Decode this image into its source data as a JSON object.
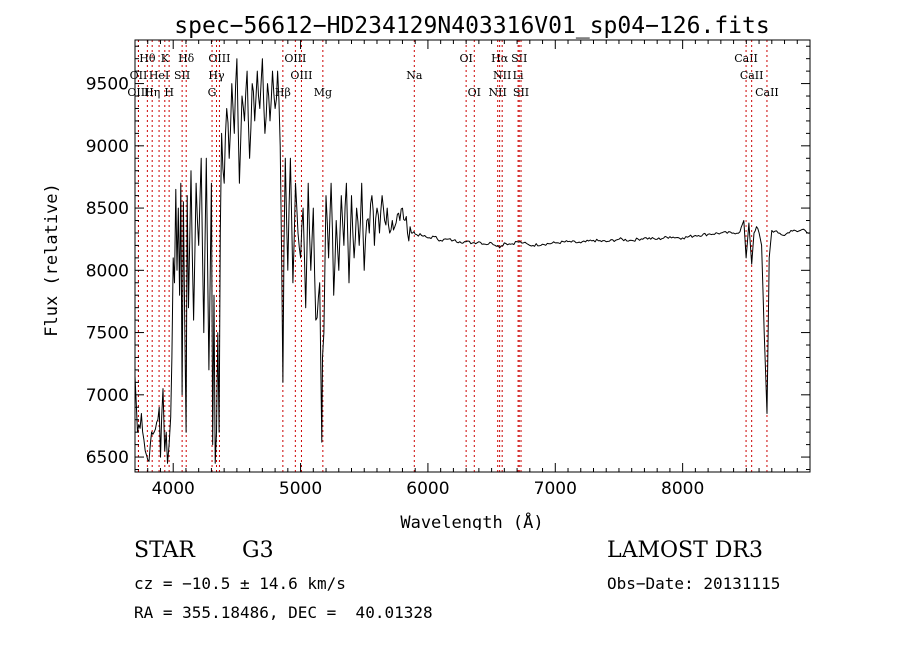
{
  "chart_data": {
    "type": "line",
    "title": "spec−56612−HD234129N403316V01_sp04−126.fits",
    "xlabel": "Wavelength (Å)",
    "ylabel": "Flux (relative)",
    "xlim": [
      3700,
      9000
    ],
    "ylim": [
      6380,
      9850
    ],
    "xticks": [
      "4000",
      "5000",
      "6000",
      "7000",
      "8000"
    ],
    "yticks": [
      "6500",
      "7000",
      "7500",
      "8000",
      "8500",
      "9000",
      "9500"
    ],
    "series": [
      {
        "x": [
          3700,
          3720,
          3750,
          3780,
          3800,
          3820,
          3850,
          3870,
          3890,
          3900,
          3920,
          3933,
          3945,
          3955,
          3968,
          3980,
          3990,
          4000,
          4010,
          4020,
          4030,
          4040,
          4050,
          4060,
          4070,
          4080,
          4090,
          4101,
          4110,
          4120,
          4140,
          4160,
          4180,
          4200,
          4220,
          4240,
          4260,
          4280,
          4300,
          4310,
          4320,
          4330,
          4340,
          4350,
          4360,
          4370,
          4380,
          4400,
          4420,
          4440,
          4460,
          4480,
          4500,
          4520,
          4540,
          4560,
          4580,
          4600,
          4620,
          4640,
          4660,
          4680,
          4700,
          4720,
          4740,
          4760,
          4780,
          4800,
          4820,
          4840,
          4850,
          4861,
          4870,
          4880,
          4900,
          4920,
          4940,
          4960,
          4980,
          5000,
          5020,
          5040,
          5060,
          5080,
          5100,
          5120,
          5150,
          5167,
          5172,
          5183,
          5200,
          5220,
          5240,
          5260,
          5280,
          5300,
          5320,
          5340,
          5360,
          5380,
          5400,
          5420,
          5440,
          5460,
          5480,
          5500,
          5520,
          5540,
          5560,
          5580,
          5600,
          5620,
          5640,
          5660,
          5680,
          5700,
          5720,
          5740,
          5760,
          5780,
          5800,
          5820,
          5840,
          5860,
          5880,
          5900,
          5950,
          6000,
          6050,
          6100,
          6150,
          6200,
          6250,
          6300,
          6350,
          6400,
          6450,
          6500,
          6550,
          6563,
          6600,
          6650,
          6700,
          6750,
          6800,
          6900,
          7000,
          7100,
          7200,
          7300,
          7400,
          7500,
          7600,
          7700,
          7800,
          7900,
          8000,
          8100,
          8200,
          8300,
          8400,
          8450,
          8480,
          8498,
          8520,
          8542,
          8560,
          8580,
          8600,
          8620,
          8640,
          8662,
          8680,
          8700,
          8750,
          8800,
          8850,
          8900,
          8950,
          9000
        ],
        "y": [
          7150,
          6700,
          6850,
          6550,
          6480,
          6600,
          6700,
          6780,
          6900,
          6500,
          7050,
          6550,
          6700,
          6450,
          6600,
          6820,
          7300,
          8100,
          7900,
          8650,
          8000,
          8500,
          7800,
          8700,
          7000,
          8550,
          7600,
          6700,
          8600,
          7700,
          8800,
          7600,
          8700,
          8200,
          8900,
          7500,
          8900,
          7200,
          8700,
          6600,
          7800,
          6450,
          6700,
          7500,
          6700,
          8300,
          9100,
          8700,
          9300,
          8900,
          9500,
          9100,
          9700,
          8700,
          9400,
          9200,
          9600,
          8900,
          9500,
          9200,
          9600,
          9300,
          9700,
          9100,
          9500,
          9200,
          9600,
          9300,
          9600,
          9000,
          8200,
          7100,
          8200,
          8900,
          8000,
          8900,
          7900,
          8700,
          8300,
          8100,
          8500,
          7700,
          8700,
          8000,
          8500,
          7600,
          7900,
          6620,
          7300,
          7500,
          8600,
          8100,
          8700,
          7800,
          8400,
          8000,
          8600,
          8200,
          8700,
          7900,
          8600,
          8100,
          8500,
          8200,
          8700,
          8000,
          8400,
          8300,
          8600,
          8200,
          8500,
          8300,
          8600,
          8400,
          8500,
          8300,
          8400,
          8350,
          8450,
          8400,
          8500,
          8400,
          8300,
          8350,
          8300,
          8290,
          8280,
          8260,
          8270,
          8240,
          8250,
          8240,
          8230,
          8230,
          8220,
          8230,
          8210,
          8220,
          8200,
          8180,
          8220,
          8210,
          8230,
          8220,
          8200,
          8210,
          8220,
          8230,
          8220,
          8240,
          8230,
          8250,
          8240,
          8260,
          8250,
          8270,
          8260,
          8280,
          8290,
          8300,
          8300,
          8310,
          8400,
          8100,
          8380,
          8050,
          8300,
          8350,
          8300,
          8200,
          7500,
          6850,
          8100,
          8320,
          8300,
          8280,
          8320,
          8310,
          8330,
          8300
        ]
      }
    ],
    "line_markers": [
      {
        "name": "Hθ",
        "wavelength": 3797,
        "row": 0
      },
      {
        "name": "K",
        "wavelength": 3934,
        "row": 0
      },
      {
        "name": "Hδ",
        "wavelength": 4102,
        "row": 0
      },
      {
        "name": "OIII",
        "wavelength": 4363,
        "row": 0
      },
      {
        "name": "OIII",
        "wavelength": 4959,
        "row": 0
      },
      {
        "name": "OI",
        "wavelength": 6300,
        "row": 0
      },
      {
        "name": "Hα",
        "wavelength": 6563,
        "row": 0
      },
      {
        "name": "SII",
        "wavelength": 6717,
        "row": 0
      },
      {
        "name": "CaII",
        "wavelength": 8498,
        "row": 0
      },
      {
        "name": "OII",
        "wavelength": 3727,
        "row": 1
      },
      {
        "name": "HeI",
        "wavelength": 3889,
        "row": 1
      },
      {
        "name": "SII",
        "wavelength": 4070,
        "row": 1
      },
      {
        "name": "Hγ",
        "wavelength": 4340,
        "row": 1
      },
      {
        "name": "OIII",
        "wavelength": 5007,
        "row": 1
      },
      {
        "name": "NII",
        "wavelength": 6583,
        "row": 1
      },
      {
        "name": "Li",
        "wavelength": 6708,
        "row": 1
      },
      {
        "name": "CaII",
        "wavelength": 8542,
        "row": 1
      },
      {
        "name": "OIII",
        "wavelength": 3727,
        "row": 2
      },
      {
        "name": "Hη",
        "wavelength": 3835,
        "row": 2
      },
      {
        "name": "H",
        "wavelength": 3968,
        "row": 2
      },
      {
        "name": "G",
        "wavelength": 4305,
        "row": 2
      },
      {
        "name": "Hβ",
        "wavelength": 4861,
        "row": 2
      },
      {
        "name": "Mg",
        "wavelength": 5175,
        "row": 2
      },
      {
        "name": "Na",
        "wavelength": 5893,
        "row": 1
      },
      {
        "name": "OI",
        "wavelength": 6364,
        "row": 2
      },
      {
        "name": "NII",
        "wavelength": 6548,
        "row": 2
      },
      {
        "name": "SII",
        "wavelength": 6731,
        "row": 2
      },
      {
        "name": "CaII",
        "wavelength": 8662,
        "row": 2
      }
    ],
    "marker_color": "#cc0000",
    "grid": false
  },
  "info": {
    "object_class": "STAR",
    "subclass": "G3",
    "survey": "LAMOST DR3",
    "cz": "cz = −10.5 ± 14.6 km/s",
    "obs_date": "Obs−Date: 20131115",
    "radec": "RA = 355.18486, DEC =  40.01328"
  }
}
